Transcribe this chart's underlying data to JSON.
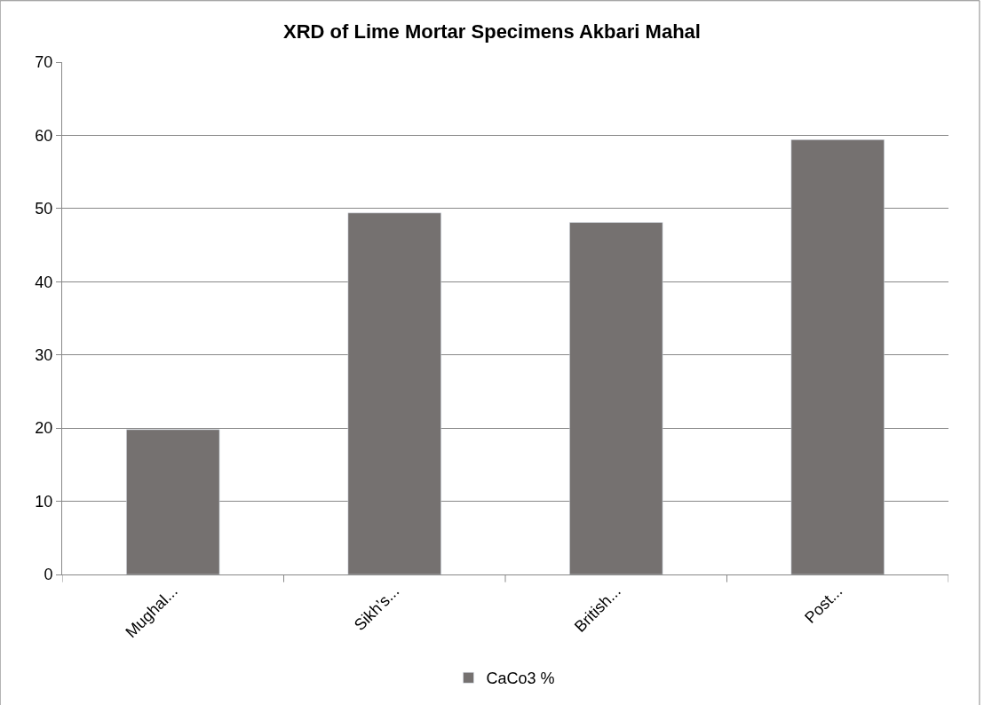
{
  "chart_data": {
    "type": "bar",
    "title": "XRD of Lime Mortar Specimens Akbari Mahal",
    "categories": [
      "Mughal...",
      "Sikh’s...",
      "British...",
      "Post..."
    ],
    "series": [
      {
        "name": "CaCo3 %",
        "color": "#757170",
        "values": [
          19.8,
          49.4,
          48.1,
          59.4
        ]
      }
    ],
    "ylim": [
      0,
      70
    ],
    "yticks": [
      0,
      10,
      20,
      30,
      40,
      50,
      60,
      70
    ],
    "grid": "y",
    "legend": "bottom"
  }
}
